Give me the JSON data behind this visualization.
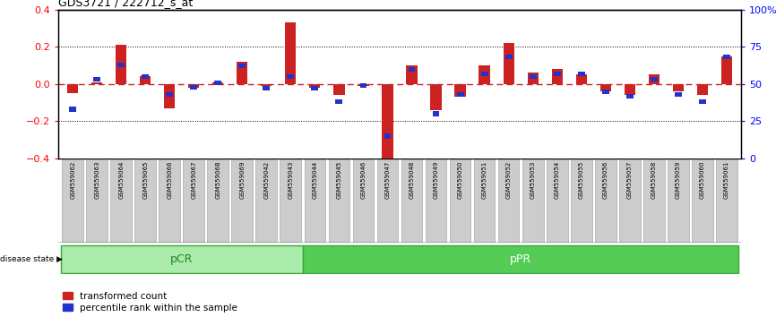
{
  "title": "GDS3721 / 222712_s_at",
  "samples": [
    "GSM559062",
    "GSM559063",
    "GSM559064",
    "GSM559065",
    "GSM559066",
    "GSM559067",
    "GSM559068",
    "GSM559069",
    "GSM559042",
    "GSM559043",
    "GSM559044",
    "GSM559045",
    "GSM559046",
    "GSM559047",
    "GSM559048",
    "GSM559049",
    "GSM559050",
    "GSM559051",
    "GSM559052",
    "GSM559053",
    "GSM559054",
    "GSM559055",
    "GSM559056",
    "GSM559057",
    "GSM559058",
    "GSM559059",
    "GSM559060",
    "GSM559061"
  ],
  "transformed_count": [
    -0.05,
    0.01,
    0.21,
    0.04,
    -0.13,
    -0.02,
    0.01,
    0.12,
    -0.01,
    0.33,
    -0.02,
    -0.06,
    -0.01,
    -0.43,
    0.1,
    -0.14,
    -0.07,
    0.1,
    0.22,
    0.06,
    0.08,
    0.05,
    -0.04,
    -0.06,
    0.05,
    -0.04,
    -0.06,
    0.15
  ],
  "percentile_rank": [
    33,
    53,
    63,
    55,
    43,
    48,
    51,
    62,
    47,
    55,
    47,
    38,
    49,
    15,
    60,
    30,
    43,
    57,
    68,
    55,
    57,
    57,
    45,
    42,
    53,
    43,
    38,
    68
  ],
  "pcr_count": 10,
  "ppr_count": 18,
  "ylim": [
    -0.4,
    0.4
  ],
  "yticks_left": [
    -0.4,
    -0.2,
    0.0,
    0.2,
    0.4
  ],
  "yticks_right_pct": [
    0,
    25,
    50,
    75,
    100
  ],
  "ytick_labels_right": [
    "0",
    "25",
    "50",
    "75",
    "100%"
  ],
  "bar_color": "#cc2222",
  "percentile_color": "#2233cc",
  "zero_line_color": "#cc2222",
  "dotted_line_color": "#000000",
  "pcr_color": "#aaeaaa",
  "ppr_color": "#55cc55",
  "tick_bg_color": "#cccccc",
  "legend_labels": [
    "transformed count",
    "percentile rank within the sample"
  ]
}
